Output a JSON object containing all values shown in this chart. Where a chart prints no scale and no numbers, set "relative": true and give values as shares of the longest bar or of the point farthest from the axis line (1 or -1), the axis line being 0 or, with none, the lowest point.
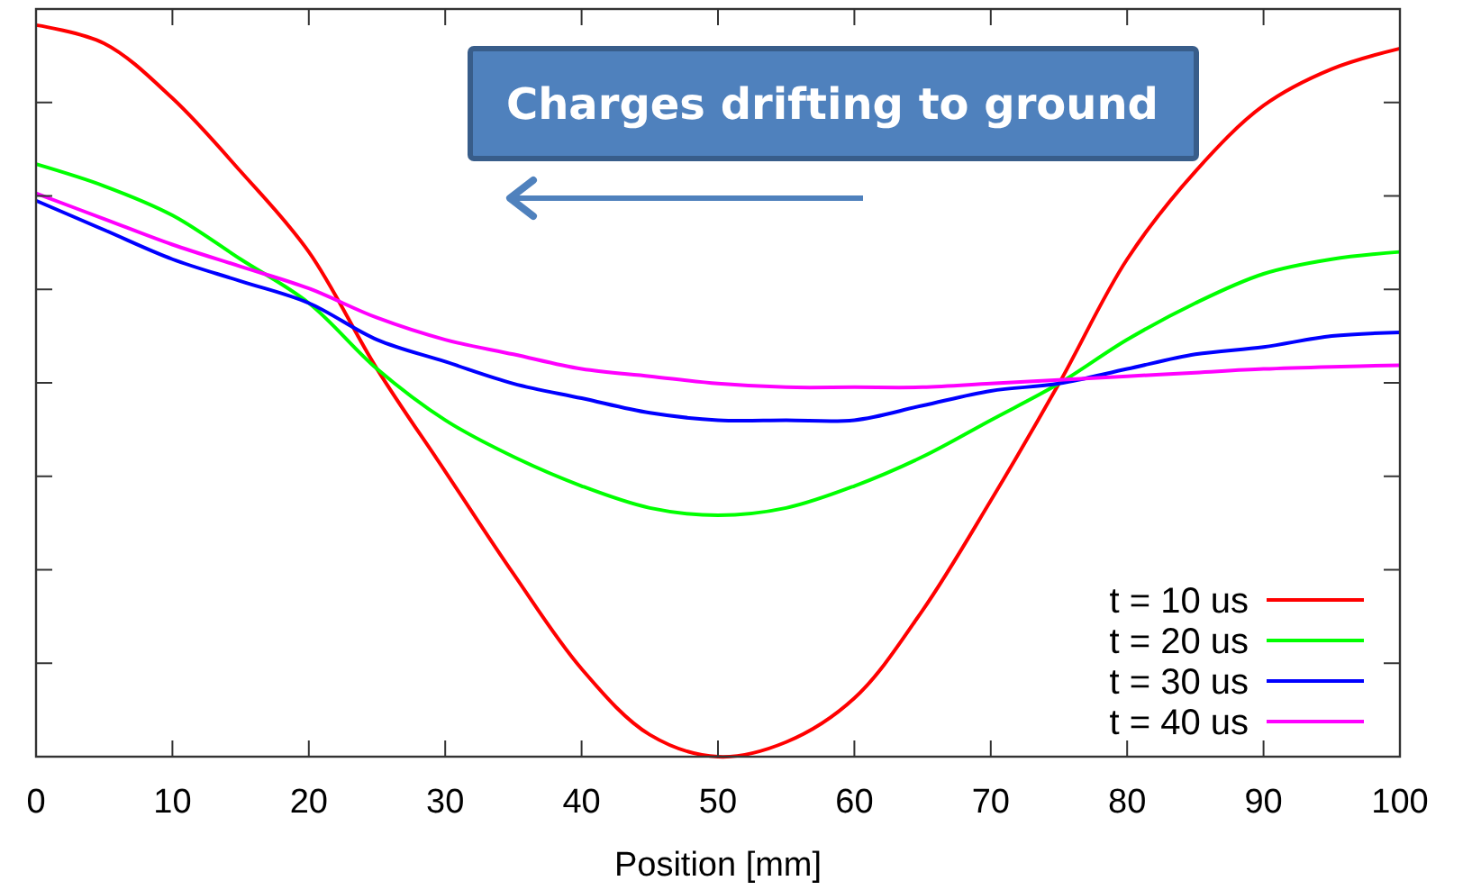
{
  "chart_data": {
    "type": "line",
    "relative": true,
    "xlabel": "Position [mm]",
    "xlim": [
      0,
      100
    ],
    "xticks": [
      0,
      10,
      20,
      30,
      40,
      50,
      60,
      70,
      80,
      90,
      100
    ],
    "legend": "bottom right",
    "annotations": [
      "Charges drifting to ground"
    ],
    "x": [
      0,
      5,
      10,
      15,
      20,
      25,
      30,
      35,
      40,
      45,
      50,
      55,
      60,
      65,
      70,
      75,
      80,
      85,
      90,
      95,
      100
    ],
    "series": [
      {
        "name": "t = 10 us",
        "color": "#ff0000",
        "values": [
          1.0,
          0.975,
          0.9,
          0.8,
          0.69,
          0.53,
          0.39,
          0.25,
          0.12,
          0.03,
          0,
          0.02,
          0.08,
          0.2,
          0.35,
          0.51,
          0.68,
          0.8,
          0.89,
          0.94,
          0.968
        ]
      },
      {
        "name": "t = 20 us",
        "color": "#00ff00",
        "values": [
          0.81,
          0.78,
          0.74,
          0.68,
          0.62,
          0.53,
          0.46,
          0.41,
          0.37,
          0.34,
          0.33,
          0.34,
          0.37,
          0.41,
          0.46,
          0.51,
          0.57,
          0.62,
          0.66,
          0.68,
          0.69
        ]
      },
      {
        "name": "t = 30 us",
        "color": "#0000ff",
        "values": [
          0.76,
          0.72,
          0.68,
          0.65,
          0.62,
          0.57,
          0.54,
          0.51,
          0.49,
          0.47,
          0.46,
          0.46,
          0.46,
          0.48,
          0.5,
          0.51,
          0.53,
          0.55,
          0.56,
          0.575,
          0.58
        ]
      },
      {
        "name": "t = 40 us",
        "color": "#ff00ff",
        "values": [
          0.77,
          0.735,
          0.7,
          0.67,
          0.64,
          0.6,
          0.57,
          0.55,
          0.53,
          0.52,
          0.51,
          0.505,
          0.505,
          0.505,
          0.51,
          0.515,
          0.52,
          0.525,
          0.53,
          0.533,
          0.535
        ]
      }
    ]
  }
}
